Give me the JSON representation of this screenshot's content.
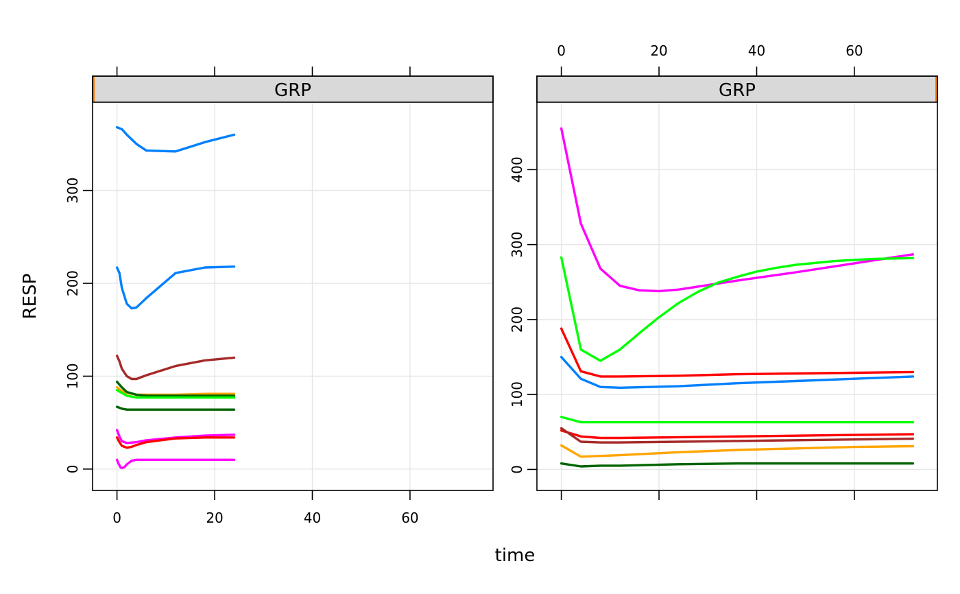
{
  "chart_data": {
    "type": "line",
    "xlabel": "time",
    "ylabel": "RESP",
    "grid": true,
    "panels": [
      {
        "strip": "GRP",
        "strip_indicator": "left",
        "xlim": [
          -5,
          77
        ],
        "ylim": [
          -23,
          395
        ],
        "xticks": [
          0,
          20,
          40,
          60
        ],
        "yticks": [
          0,
          100,
          200,
          300
        ],
        "x_tick_labels_position": "bottom",
        "y_tick_labels_position": "left",
        "series": [
          {
            "color": "#0080ff",
            "x": [
              0,
              1,
              2,
              4,
              6,
              12,
              18,
              24
            ],
            "y": [
              368,
              366,
              360,
              350,
              343,
              342,
              352,
              360
            ]
          },
          {
            "color": "#0080ff",
            "x": [
              0,
              0.5,
              1,
              2,
              3,
              4,
              6,
              12,
              18,
              24
            ],
            "y": [
              217,
              211,
              195,
              178,
              173,
              174,
              184,
              211,
              217,
              218
            ]
          },
          {
            "color": "#a52a2a",
            "x": [
              0,
              0.5,
              1,
              2,
              3,
              4,
              6,
              12,
              18,
              24
            ],
            "y": [
              122,
              116,
              108,
              100,
              97,
              97,
              101,
              111,
              117,
              120
            ]
          },
          {
            "color": "#ffa500",
            "x": [
              0,
              1,
              2,
              4,
              6,
              12,
              18,
              24
            ],
            "y": [
              88,
              84,
              82,
              80,
              80,
              80,
              81,
              81
            ]
          },
          {
            "color": "#006400",
            "x": [
              0,
              1,
              2,
              4,
              6,
              12,
              18,
              24
            ],
            "y": [
              94,
              88,
              83,
              80,
              79,
              79,
              79,
              79
            ]
          },
          {
            "color": "#00ff00",
            "x": [
              0,
              1,
              2,
              4,
              6,
              12,
              18,
              24
            ],
            "y": [
              85,
              82,
              79,
              77,
              77,
              77,
              77,
              77
            ]
          },
          {
            "color": "#006400",
            "x": [
              0,
              1,
              2,
              4,
              6,
              12,
              18,
              24
            ],
            "y": [
              67,
              65,
              64,
              64,
              64,
              64,
              64,
              64
            ]
          },
          {
            "color": "#ff00ff",
            "x": [
              0,
              0.5,
              1,
              2,
              4,
              6,
              12,
              18,
              24
            ],
            "y": [
              42,
              35,
              30,
              28,
              29,
              31,
              34,
              36,
              37
            ]
          },
          {
            "color": "#ff0000",
            "x": [
              0,
              0.5,
              1,
              2,
              3,
              4,
              6,
              12,
              18,
              24
            ],
            "y": [
              34,
              29,
              25,
              23,
              24,
              26,
              29,
              33,
              34,
              34
            ]
          },
          {
            "color": "#ff00ff",
            "x": [
              0,
              0.3,
              0.7,
              1,
              1.5,
              2,
              3,
              4,
              6,
              12,
              18,
              24
            ],
            "y": [
              10,
              6,
              2,
              1,
              2,
              5,
              9,
              10,
              10,
              10,
              10,
              10
            ]
          }
        ]
      },
      {
        "strip": "GRP",
        "strip_indicator": "right",
        "xlim": [
          -5,
          77
        ],
        "ylim": [
          -28,
          490
        ],
        "xticks": [
          0,
          20,
          40,
          60
        ],
        "yticks": [
          0,
          100,
          200,
          300,
          400
        ],
        "x_tick_labels_position": "top",
        "y_tick_labels_position": "left",
        "series": [
          {
            "color": "#ff00ff",
            "x": [
              0,
              4,
              8,
              12,
              16,
              20,
              24,
              36,
              48,
              60,
              72
            ],
            "y": [
              455,
              328,
              268,
              245,
              239,
              238,
              240,
              252,
              263,
              275,
              287
            ]
          },
          {
            "color": "#00ff00",
            "x": [
              0,
              4,
              8,
              12,
              16,
              20,
              24,
              28,
              32,
              36,
              40,
              44,
              48,
              56,
              64,
              72
            ],
            "y": [
              283,
              160,
              145,
              160,
              182,
              203,
              222,
              237,
              249,
              257,
              264,
              269,
              273,
              278,
              281,
              282
            ]
          },
          {
            "color": "#ff0000",
            "x": [
              0,
              4,
              8,
              12,
              24,
              36,
              48,
              60,
              72
            ],
            "y": [
              188,
              131,
              124,
              124,
              125,
              127,
              128,
              129,
              130
            ]
          },
          {
            "color": "#0080ff",
            "x": [
              0,
              4,
              8,
              12,
              24,
              36,
              48,
              60,
              72
            ],
            "y": [
              150,
              121,
              110,
              109,
              111,
              115,
              118,
              121,
              124
            ]
          },
          {
            "color": "#00ff00",
            "x": [
              0,
              4,
              8,
              12,
              24,
              36,
              48,
              60,
              72
            ],
            "y": [
              70,
              63,
              63,
              63,
              63,
              63,
              63,
              63,
              63
            ]
          },
          {
            "color": "#ff0000",
            "x": [
              0,
              4,
              8,
              12,
              24,
              36,
              48,
              60,
              72
            ],
            "y": [
              52,
              44,
              42,
              42,
              43,
              44,
              45,
              46,
              47
            ]
          },
          {
            "color": "#a52a2a",
            "x": [
              0,
              4,
              8,
              12,
              24,
              36,
              48,
              60,
              72
            ],
            "y": [
              55,
              37,
              36,
              36,
              37,
              38,
              39,
              40,
              41
            ]
          },
          {
            "color": "#ffa500",
            "x": [
              0,
              4,
              8,
              12,
              24,
              36,
              48,
              60,
              72
            ],
            "y": [
              32,
              17,
              18,
              19,
              23,
              26,
              28,
              30,
              31
            ]
          },
          {
            "color": "#006400",
            "x": [
              0,
              4,
              8,
              12,
              24,
              36,
              48,
              60,
              72
            ],
            "y": [
              8,
              4,
              5,
              5,
              7,
              8,
              8,
              8,
              8
            ]
          }
        ]
      }
    ]
  }
}
